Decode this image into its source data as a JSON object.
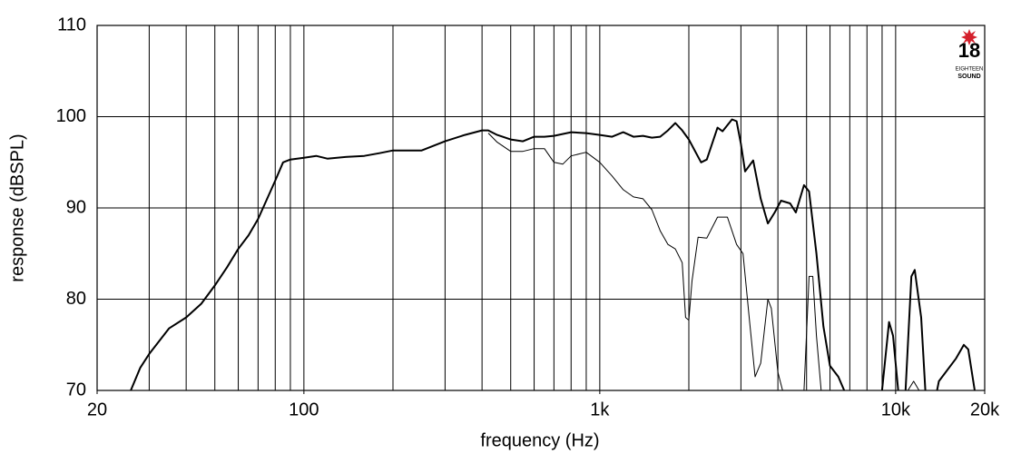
{
  "chart_data": {
    "type": "line",
    "xlabel": "frequency (Hz)",
    "ylabel": "response (dBSPL)",
    "xscale": "log",
    "xlim": [
      20,
      20000
    ],
    "ylim": [
      70,
      110
    ],
    "xticks": [
      20,
      100,
      {
        "value": 1000,
        "label": "1k"
      },
      {
        "value": 10000,
        "label": "10k"
      },
      {
        "value": 20000,
        "label": "20k"
      }
    ],
    "xgrid": [
      30,
      40,
      50,
      60,
      70,
      80,
      90,
      100,
      200,
      300,
      400,
      500,
      600,
      700,
      800,
      900,
      1000,
      2000,
      3000,
      4000,
      5000,
      6000,
      7000,
      8000,
      9000,
      10000
    ],
    "yticks": [
      70,
      80,
      90,
      100,
      110
    ],
    "grid": true,
    "logo": {
      "number": "18",
      "line1": "EIGHTEEN",
      "line2": "SOUND"
    },
    "series": [
      {
        "color": "#000000",
        "width": 2,
        "x": [
          26,
          28,
          30,
          35,
          40,
          45,
          50,
          55,
          60,
          65,
          70,
          80,
          85,
          90,
          100,
          110,
          120,
          140,
          160,
          180,
          200,
          250,
          300,
          350,
          400,
          420,
          450,
          500,
          550,
          600,
          650,
          700,
          800,
          900,
          1000,
          1100,
          1200,
          1300,
          1400,
          1500,
          1600,
          1700,
          1800,
          1900,
          2000,
          2200,
          2300,
          2500,
          2600,
          2800,
          2900,
          3000,
          3100,
          3300,
          3500,
          3700,
          3900,
          4100,
          4400,
          4600,
          4900,
          5100,
          5400,
          5700,
          6000,
          6400,
          6700,
          8000,
          9000,
          9500,
          9800,
          10200,
          10500,
          10800,
          11300,
          11600,
          12200,
          12600,
          13200,
          13800,
          14000,
          16000,
          17000,
          17600,
          18500
        ],
        "values": [
          70,
          72.5,
          74,
          76.8,
          78,
          79.5,
          81.5,
          83.5,
          85.5,
          87,
          88.8,
          93,
          95,
          95.3,
          95.5,
          95.7,
          95.4,
          95.6,
          95.7,
          96,
          96.3,
          96.3,
          97.3,
          98,
          98.5,
          98.5,
          98,
          97.5,
          97.3,
          97.8,
          97.8,
          97.9,
          98.3,
          98.2,
          98,
          97.8,
          98.3,
          97.8,
          97.9,
          97.7,
          97.8,
          98.5,
          99.3,
          98.5,
          97.5,
          95,
          95.3,
          98.8,
          98.4,
          99.7,
          99.5,
          97,
          94,
          95.2,
          91,
          88.3,
          89.5,
          90.8,
          90.5,
          89.5,
          92.5,
          91.8,
          85,
          77,
          72.7,
          71.5,
          70,
          null,
          70,
          77.5,
          76,
          70,
          null,
          70,
          82.5,
          83.2,
          78,
          70,
          null,
          70,
          71,
          73.5,
          75,
          74.5,
          70
        ]
      },
      {
        "color": "#000000",
        "width": 1,
        "x": [
          420,
          450,
          500,
          550,
          600,
          650,
          700,
          750,
          800,
          900,
          1000,
          1100,
          1200,
          1300,
          1400,
          1500,
          1600,
          1700,
          1800,
          1900,
          1950,
          2000,
          2050,
          2150,
          2300,
          2500,
          2700,
          2900,
          3050,
          3200,
          3350,
          3500,
          3700,
          3800,
          4000,
          4150,
          4500,
          4900,
          5100,
          5250,
          5400,
          5600,
          8000,
          11000,
          11500,
          12000
        ],
        "values": [
          98.2,
          97.2,
          96.2,
          96.2,
          96.5,
          96.5,
          95,
          94.8,
          95.7,
          96.1,
          95,
          93.5,
          92,
          91.2,
          91,
          89.8,
          87.5,
          86,
          85.5,
          84,
          78,
          77.7,
          82,
          86.8,
          86.7,
          89,
          89,
          86,
          85,
          78,
          71.5,
          73,
          80,
          79,
          72,
          70,
          null,
          70,
          82.5,
          82.5,
          76,
          70,
          null,
          70,
          71,
          70
        ]
      }
    ]
  }
}
